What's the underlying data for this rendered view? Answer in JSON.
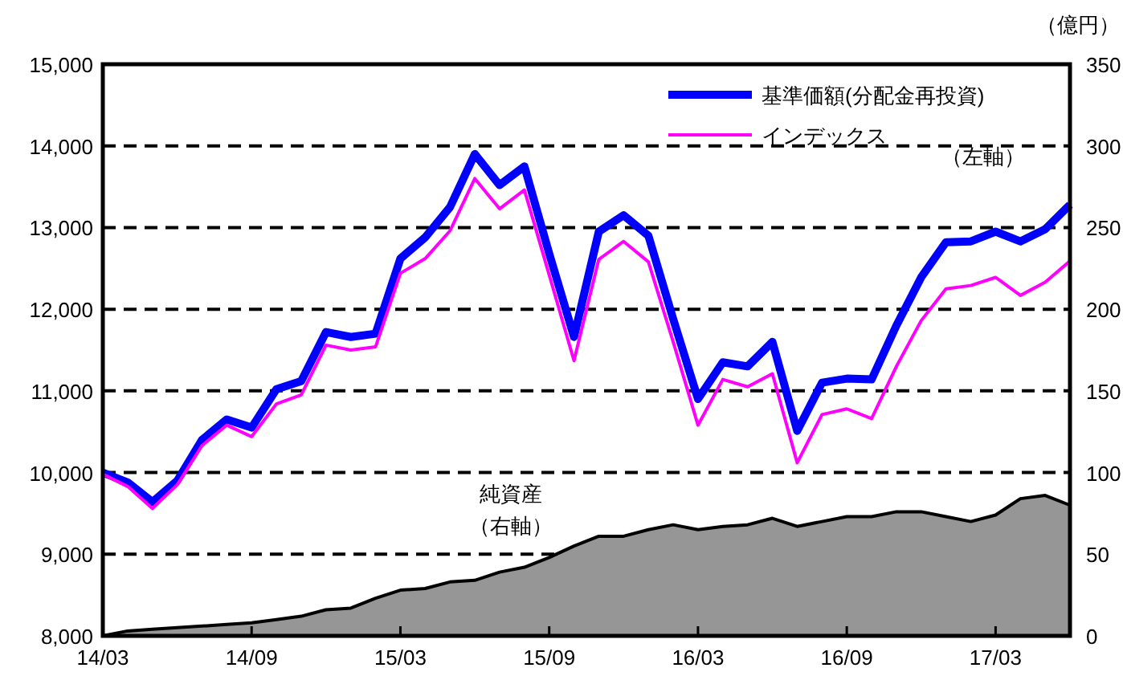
{
  "chart_data": {
    "type": "line",
    "y2label": "（億円）",
    "categories": [
      "14/03",
      null,
      null,
      null,
      null,
      null,
      "14/09",
      null,
      null,
      null,
      null,
      null,
      "15/03",
      null,
      null,
      null,
      null,
      null,
      "15/09",
      null,
      null,
      null,
      null,
      null,
      "16/03",
      null,
      null,
      null,
      null,
      null,
      "16/09",
      null,
      null,
      null,
      null,
      null,
      "17/03",
      null,
      null,
      null
    ],
    "series": [
      {
        "name": "基準価額(分配金再投資)",
        "color": "#0000ff",
        "values": [
          10000,
          9880,
          9640,
          9900,
          10400,
          10650,
          10550,
          11020,
          11120,
          11720,
          11660,
          11700,
          12620,
          12880,
          13250,
          13900,
          13520,
          13750,
          12680,
          11660,
          12950,
          13150,
          12900,
          11880,
          10900,
          11350,
          11300,
          11600,
          10510,
          11100,
          11150,
          11140,
          11800,
          12390,
          12820,
          12830,
          12950,
          12830,
          12980,
          13280
        ]
      },
      {
        "name": "インデックス",
        "color": "#ff00ff",
        "values": [
          9980,
          9830,
          9560,
          9850,
          10330,
          10580,
          10440,
          10840,
          10950,
          11560,
          11500,
          11540,
          12440,
          12620,
          12960,
          13600,
          13230,
          13460,
          12420,
          11370,
          12610,
          12830,
          12580,
          11600,
          10580,
          11140,
          11050,
          11210,
          10120,
          10710,
          10780,
          10660,
          11300,
          11860,
          12250,
          12290,
          12390,
          12170,
          12330,
          12590
        ]
      },
      {
        "color": "#969696",
        "type": "area",
        "axis": "y2",
        "values": [
          0,
          3,
          4,
          5,
          6,
          7,
          8,
          10,
          12,
          16,
          17,
          23,
          28,
          29,
          33,
          34,
          39,
          42,
          48,
          55,
          61,
          61,
          65,
          68,
          65,
          67,
          68,
          72,
          67,
          70,
          73,
          73,
          76,
          76,
          73,
          70,
          74,
          84,
          86,
          80
        ]
      }
    ],
    "ylim": [
      8000,
      15000
    ],
    "yticks": [
      {
        "value": 8000,
        "label": "8,000"
      },
      {
        "value": 9000,
        "label": "9,000"
      },
      {
        "value": 10000,
        "label": "10,000"
      },
      {
        "value": 11000,
        "label": "11,000"
      },
      {
        "value": 12000,
        "label": "12,000"
      },
      {
        "value": 13000,
        "label": "13,000"
      },
      {
        "value": 14000,
        "label": "14,000"
      },
      {
        "value": 15000,
        "label": "15,000"
      }
    ],
    "y2lim": [
      0,
      350
    ],
    "y2ticks": [
      0,
      50,
      100,
      150,
      200,
      250,
      300,
      350
    ],
    "grid": "y",
    "legend": "top right",
    "annotations": [
      "（左軸）",
      "純資産",
      "（右軸）"
    ]
  }
}
